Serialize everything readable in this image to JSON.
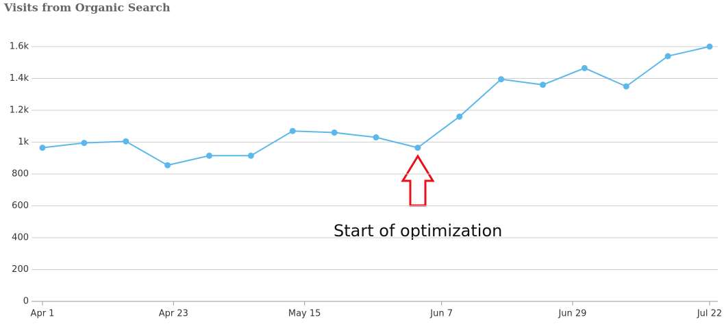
{
  "chart_data": {
    "type": "line",
    "title": "Visits from Organic Search",
    "x": [
      "Apr 1",
      "Apr 8",
      "Apr 15",
      "Apr 22",
      "Apr 29",
      "May 6",
      "May 13",
      "May 20",
      "May 27",
      "Jun 3",
      "Jun 10",
      "Jun 17",
      "Jun 24",
      "Jul 1",
      "Jul 8",
      "Jul 15",
      "Jul 22"
    ],
    "series": [
      {
        "name": "Visits",
        "color": "#5cb8ea",
        "values": [
          965,
          995,
          1005,
          855,
          915,
          915,
          1070,
          1060,
          1030,
          965,
          1160,
          1395,
          1360,
          1465,
          1350,
          1540,
          1600
        ]
      }
    ],
    "xticks": [
      "Apr 1",
      "Apr 23",
      "May 15",
      "Jun 7",
      "Jun 29",
      "Jul 22"
    ],
    "ylim": [
      0,
      1600
    ],
    "yticks": [
      0,
      200,
      400,
      600,
      800,
      {
        "value": 1000,
        "label": "1k"
      },
      {
        "value": 1200,
        "label": "1.2k"
      },
      {
        "value": 1400,
        "label": "1.4k"
      },
      {
        "value": 1600,
        "label": "1.6k"
      }
    ],
    "grid": true,
    "annotation": "Start of optimization"
  }
}
